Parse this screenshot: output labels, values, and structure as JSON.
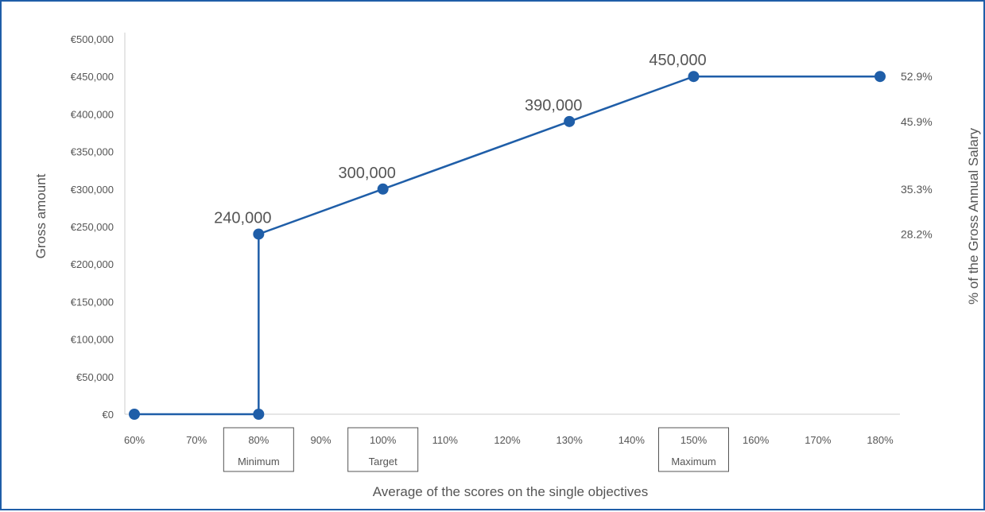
{
  "chart_data": {
    "type": "line",
    "xlabel": "Average of the scores on the single objectives",
    "ylabel": "Gross amount",
    "y2label": "% of the Gross Annual Salary",
    "x_ticks": [
      "60%",
      "70%",
      "80%",
      "90%",
      "100%",
      "110%",
      "120%",
      "130%",
      "140%",
      "150%",
      "160%",
      "170%",
      "180%"
    ],
    "x_tick_values": [
      60,
      70,
      80,
      90,
      100,
      110,
      120,
      130,
      140,
      150,
      160,
      170,
      180
    ],
    "y_ticks": [
      "€0",
      "€50,000",
      "€100,000",
      "€150,000",
      "€200,000",
      "€250,000",
      "€300,000",
      "€350,000",
      "€400,000",
      "€450,000",
      "€500,000"
    ],
    "y_tick_values": [
      0,
      50000,
      100000,
      150000,
      200000,
      250000,
      300000,
      350000,
      400000,
      450000,
      500000
    ],
    "xlim": [
      60,
      180
    ],
    "ylim": [
      0,
      500000
    ],
    "series": [
      {
        "color": "#1f5ea8",
        "points": [
          {
            "x": 60,
            "y": 0
          },
          {
            "x": 80,
            "y": 0
          },
          {
            "x": 80,
            "y": 240000
          },
          {
            "x": 100,
            "y": 300000
          },
          {
            "x": 130,
            "y": 390000
          },
          {
            "x": 150,
            "y": 450000
          },
          {
            "x": 180,
            "y": 450000
          }
        ]
      }
    ],
    "data_labels": [
      {
        "x": 80,
        "y": 240000,
        "text": "240,000"
      },
      {
        "x": 100,
        "y": 300000,
        "text": "300,000"
      },
      {
        "x": 130,
        "y": 390000,
        "text": "390,000"
      },
      {
        "x": 150,
        "y": 450000,
        "text": "450,000"
      }
    ],
    "right_labels": [
      {
        "y": 450000,
        "text": "52.9%"
      },
      {
        "y": 390000,
        "text": "45.9%"
      },
      {
        "y": 300000,
        "text": "35.3%"
      },
      {
        "y": 240000,
        "text": "28.2%"
      }
    ],
    "x_annotations": [
      {
        "x": 80,
        "text": "Minimum"
      },
      {
        "x": 100,
        "text": "Target"
      },
      {
        "x": 150,
        "text": "Maximum"
      }
    ],
    "axis_color": "#cccccc",
    "border_color": "#1f5ea8"
  }
}
